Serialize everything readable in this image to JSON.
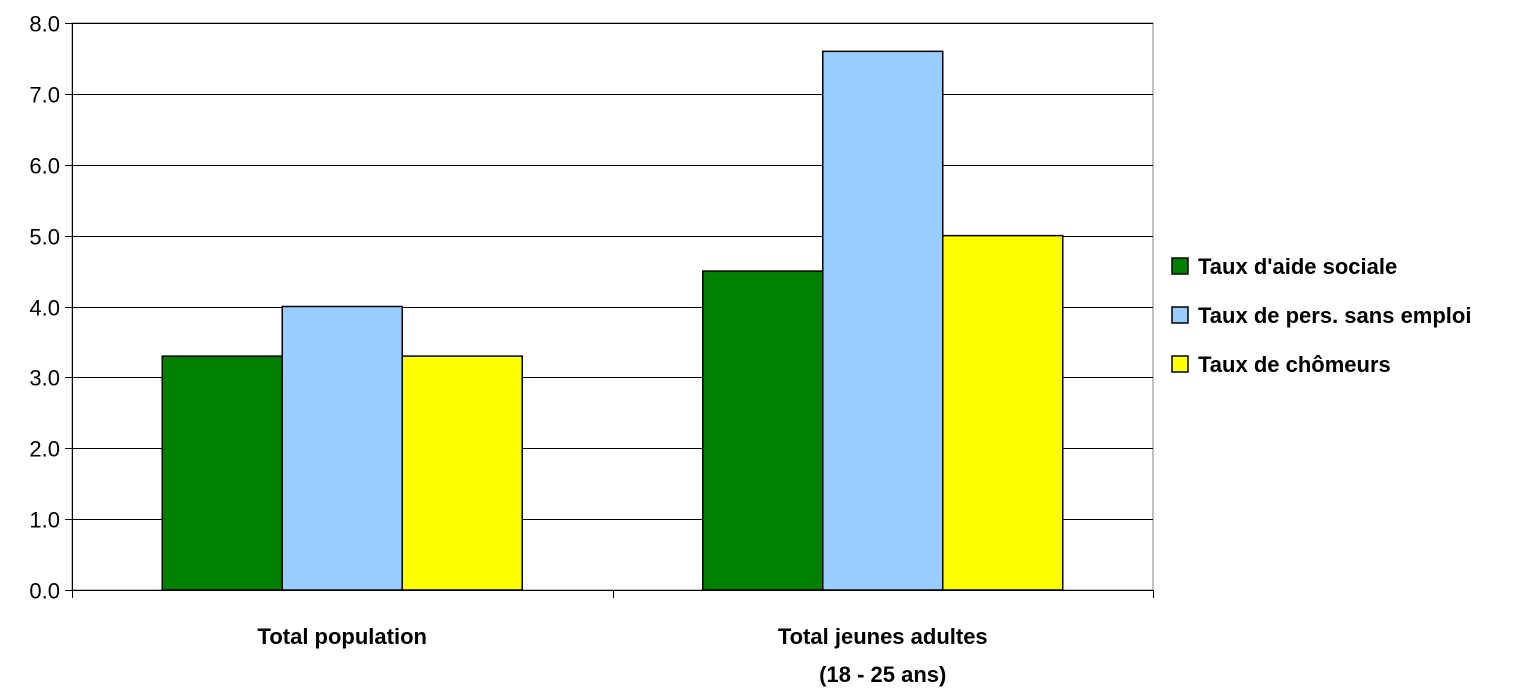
{
  "chart_data": {
    "type": "bar",
    "title": "",
    "xlabel": "",
    "ylabel": "",
    "ylim": [
      0,
      8
    ],
    "yticks": [
      0,
      1,
      2,
      3,
      4,
      5,
      6,
      7,
      8
    ],
    "ytick_labels": [
      "0.0",
      "1.0",
      "2.0",
      "3.0",
      "4.0",
      "5.0",
      "6.0",
      "7.0",
      "8.0"
    ],
    "grid": true,
    "legend_position": "right",
    "categories": [
      [
        "Total population"
      ],
      [
        "Total jeunes adultes",
        "(18 - 25 ans)"
      ]
    ],
    "series": [
      {
        "name": "Taux d'aide sociale",
        "color": "#008000",
        "values": [
          3.3,
          4.5
        ]
      },
      {
        "name": "Taux de pers. sans emploi",
        "color": "#99ccff",
        "values": [
          4.0,
          7.6
        ]
      },
      {
        "name": "Taux de chômeurs",
        "color": "#ffff00",
        "values": [
          3.3,
          5.0
        ]
      }
    ]
  }
}
